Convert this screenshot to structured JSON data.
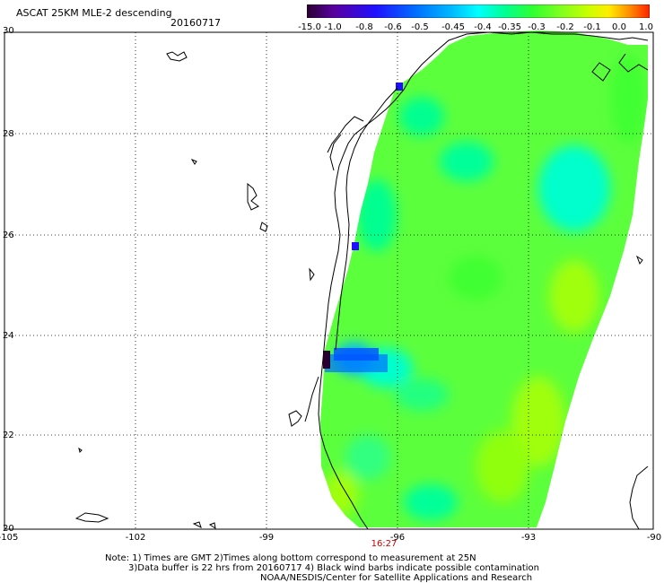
{
  "header": {
    "title": "ASCAT 25KM MLE-2 descending",
    "date": "20160717"
  },
  "colorbar": {
    "labels": [
      "-15.0",
      "-1.0",
      "-0.8",
      "-0.6",
      "-0.5",
      "-0.45",
      "-0.4",
      "-0.35",
      "-0.3",
      "-0.2",
      "-0.1",
      "0.0",
      "1.0"
    ],
    "colors": [
      "#2a0030",
      "#5a00a0",
      "#2010ff",
      "#0070ff",
      "#00b8ff",
      "#00ffff",
      "#00ff90",
      "#30ff30",
      "#80ff20",
      "#c8ff00",
      "#ffee00",
      "#ff9000",
      "#ff2000"
    ]
  },
  "axes": {
    "lon_labels": [
      "-105",
      "-102",
      "-99",
      "-96",
      "-93",
      "-90"
    ],
    "lat_labels": [
      "30",
      "28",
      "26",
      "24",
      "22",
      "20"
    ]
  },
  "time_marker": "16:27",
  "notes": [
    "Note: 1) Times are GMT 2)Times along bottom correspond to measurement at 25N",
    "3)Data buffer is 22 hrs from 20160717 4) Black wind barbs indicate possible contamination",
    "NOAA/NESDIS/Center for Satellite Applications and Research"
  ]
}
